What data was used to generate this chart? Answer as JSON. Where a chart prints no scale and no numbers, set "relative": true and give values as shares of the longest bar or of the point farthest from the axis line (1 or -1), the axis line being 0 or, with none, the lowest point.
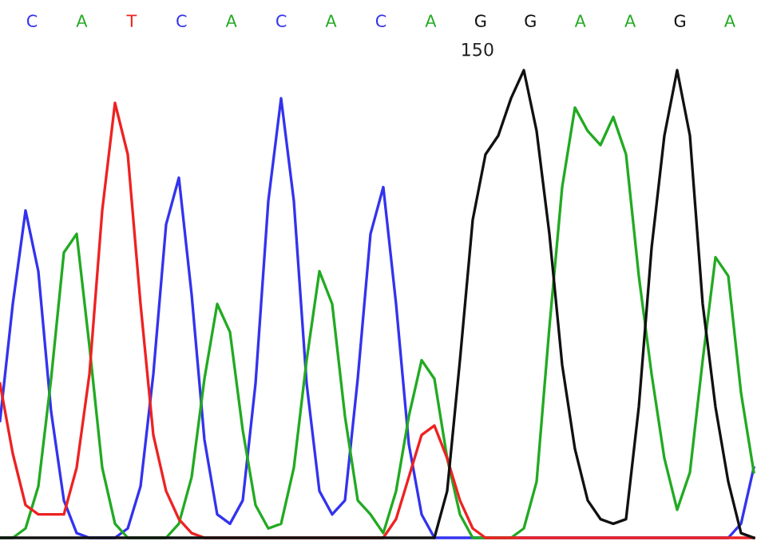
{
  "chart_data": {
    "type": "line",
    "relative": true,
    "categories": [
      null,
      null,
      null,
      null,
      null,
      null,
      null,
      null,
      null,
      null,
      null,
      null,
      null,
      null,
      null,
      null,
      null,
      null,
      null,
      null,
      null,
      null,
      null,
      null,
      null,
      null,
      null,
      null,
      null,
      null,
      null,
      null,
      null,
      null,
      null,
      null,
      null,
      null,
      null,
      null,
      null,
      null,
      null,
      null,
      null,
      null,
      null,
      null,
      null,
      null,
      null,
      null,
      null,
      null,
      null,
      null,
      null,
      null,
      null,
      null
    ],
    "annotations": [
      "C",
      "A",
      "T",
      "C",
      "A",
      "C",
      "A",
      "C",
      "A",
      "G",
      "G",
      "A",
      "A",
      "G",
      "A",
      "150"
    ],
    "series": [
      {
        "color": "#3333ee",
        "values": [
          0.25,
          0.5,
          0.7,
          0.57,
          0.27,
          0.08,
          0.01,
          0,
          0,
          0,
          0.02,
          0.11,
          0.35,
          0.67,
          0.77,
          0.52,
          0.21,
          0.05,
          0.03,
          0.08,
          0.33,
          0.72,
          0.94,
          0.72,
          0.33,
          0.1,
          0.05,
          0.08,
          0.34,
          0.65,
          0.75,
          0.5,
          0.2,
          0.05,
          0,
          0,
          0,
          0,
          0,
          0,
          0,
          0,
          0,
          0,
          0,
          0,
          0,
          0,
          0,
          0,
          0,
          0,
          0,
          0,
          0,
          0,
          0,
          0,
          0.03,
          0.15
        ]
      },
      {
        "color": "#22aa22",
        "values": [
          0,
          0,
          0.02,
          0.11,
          0.34,
          0.61,
          0.65,
          0.41,
          0.15,
          0.03,
          0,
          0,
          0,
          0,
          0.03,
          0.13,
          0.34,
          0.5,
          0.44,
          0.23,
          0.07,
          0.02,
          0.03,
          0.15,
          0.38,
          0.57,
          0.5,
          0.26,
          0.08,
          0.05,
          0.01,
          0.1,
          0.26,
          0.38,
          0.34,
          0.17,
          0.05,
          0,
          0,
          0,
          0,
          0.02,
          0.12,
          0.45,
          0.75,
          0.92,
          0.87,
          0.84,
          0.9,
          0.82,
          0.56,
          0.35,
          0.17,
          0.06,
          0.14,
          0.38,
          0.6,
          0.56,
          0.31,
          0.14
        ]
      },
      {
        "color": "#ee2222",
        "values": [
          0.33,
          0.18,
          0.07,
          0.05,
          0.05,
          0.05,
          0.15,
          0.35,
          0.7,
          0.93,
          0.82,
          0.5,
          0.22,
          0.1,
          0.04,
          0.01,
          0,
          0,
          0,
          0,
          0,
          0,
          0,
          0,
          0,
          0,
          0,
          0,
          0,
          0,
          0,
          0.04,
          0.13,
          0.22,
          0.24,
          0.17,
          0.08,
          0.02,
          0,
          0,
          0,
          0,
          0,
          0,
          0,
          0,
          0,
          0,
          0,
          0,
          0,
          0,
          0,
          0,
          0,
          0,
          0,
          0,
          0,
          0
        ]
      },
      {
        "color": "#111111",
        "values": [
          0,
          0,
          0,
          0,
          0,
          0,
          0,
          0,
          0,
          0,
          0,
          0,
          0,
          0,
          0,
          0,
          0,
          0,
          0,
          0,
          0,
          0,
          0,
          0,
          0,
          0,
          0,
          0,
          0,
          0,
          0,
          0,
          0,
          0,
          0,
          0.1,
          0.38,
          0.68,
          0.82,
          0.86,
          0.94,
          1.0,
          0.87,
          0.65,
          0.37,
          0.19,
          0.08,
          0.04,
          0.03,
          0.04,
          0.28,
          0.62,
          0.86,
          1.0,
          0.86,
          0.5,
          0.28,
          0.12,
          0.01,
          0
        ]
      }
    ]
  }
}
